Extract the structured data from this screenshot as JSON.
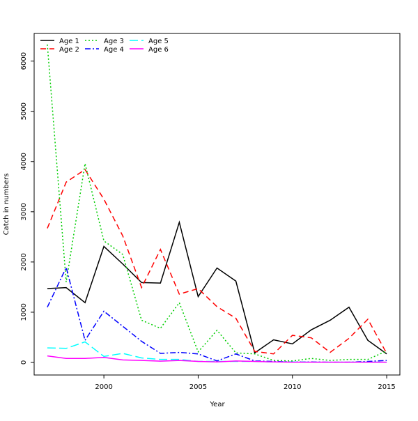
{
  "chart_data": {
    "type": "line",
    "title": "",
    "xlabel": "Year",
    "ylabel": "Catch in numbers",
    "xlim": [
      1996.3,
      2015.7
    ],
    "ylim": [
      -250,
      6550
    ],
    "xticks": [
      2000,
      2005,
      2010,
      2015
    ],
    "yticks": [
      0,
      1000,
      2000,
      3000,
      4000,
      5000,
      6000
    ],
    "grid": false,
    "legend_position": "top-left",
    "x": [
      1997,
      1998,
      1999,
      2000,
      2001,
      2002,
      2003,
      2004,
      2005,
      2006,
      2007,
      2008,
      2009,
      2010,
      2011,
      2012,
      2013,
      2014,
      2015
    ],
    "series": [
      {
        "name": "Age 1",
        "color": "#000000",
        "dash": "",
        "values": [
          1470,
          1490,
          1190,
          2310,
          1960,
          1590,
          1580,
          2790,
          1310,
          1880,
          1620,
          190,
          450,
          370,
          650,
          840,
          1100,
          440,
          170
        ]
      },
      {
        "name": "Age 2",
        "color": "#ff0000",
        "dash": "8,5",
        "values": [
          2670,
          3590,
          3840,
          3250,
          2520,
          1490,
          2250,
          1360,
          1470,
          1110,
          880,
          220,
          170,
          540,
          490,
          200,
          480,
          860,
          180
        ]
      },
      {
        "name": "Age 3",
        "color": "#00cd00",
        "dash": "2,3",
        "values": [
          6330,
          1600,
          3960,
          2420,
          2150,
          840,
          680,
          1190,
          210,
          640,
          190,
          170,
          40,
          30,
          80,
          40,
          60,
          60,
          230
        ]
      },
      {
        "name": "Age 4",
        "color": "#0000ff",
        "dash": "8,3,2,3",
        "values": [
          1100,
          1890,
          440,
          1020,
          720,
          420,
          180,
          200,
          170,
          30,
          170,
          30,
          20,
          10,
          10,
          5,
          5,
          20,
          40
        ]
      },
      {
        "name": "Age 5",
        "color": "#00ffff",
        "dash": "12,5",
        "values": [
          290,
          280,
          410,
          120,
          180,
          90,
          60,
          60,
          20,
          20,
          20,
          20,
          10,
          10,
          5,
          5,
          5,
          5,
          5
        ]
      },
      {
        "name": "Age 6",
        "color": "#ff00ff",
        "dash": "",
        "values": [
          130,
          80,
          80,
          100,
          50,
          40,
          25,
          40,
          20,
          10,
          30,
          20,
          10,
          5,
          5,
          5,
          5,
          5,
          5
        ]
      }
    ]
  }
}
